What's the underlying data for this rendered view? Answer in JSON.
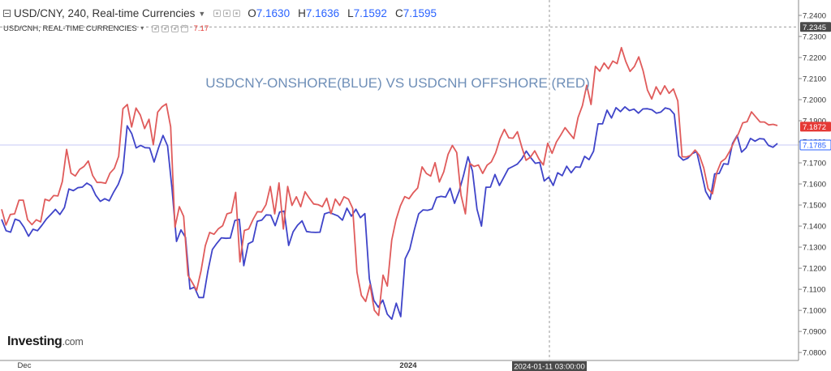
{
  "header": {
    "symbol_line": "USD/CNY, 240, Real-time Currencies",
    "ohlc": [
      {
        "key": "O",
        "value": "7.1630"
      },
      {
        "key": "H",
        "value": "7.1636"
      },
      {
        "key": "L",
        "value": "7.1592"
      },
      {
        "key": "C",
        "value": "7.1595"
      }
    ],
    "second_line": "USD/CNH, REAL-TIME CURRENCIES",
    "second_value": "7.17"
  },
  "watermark": {
    "brand": "Investing",
    "suffix": ".com"
  },
  "colors": {
    "blue_series": "#3f44c9",
    "red_series": "#e05b5b",
    "ohlc_value": "#2962ff",
    "title": "#6f8fb8",
    "crosshair": "#999999",
    "ref_line": "#c7c9f5"
  },
  "chart_data": {
    "type": "line",
    "title": "USDCNY-ONSHORE(BLUE) VS USDCNH OFFSHORE (RED)",
    "x_ticks": [
      "Dec",
      "2024"
    ],
    "crosshair_time_label": "2024-01-11 03:00:00",
    "y_ticks": [
      "7.2400",
      "7.2300",
      "7.2200",
      "7.2100",
      "7.2000",
      "7.1900",
      "7.1800",
      "7.1700",
      "7.1600",
      "7.1500",
      "7.1400",
      "7.1300",
      "7.1200",
      "7.1100",
      "7.1000",
      "7.0900",
      "7.0800"
    ],
    "ylim": [
      7.0794,
      7.2428
    ],
    "price_labels": [
      {
        "text": "7.2345",
        "value": 7.2345,
        "style": "dark"
      },
      {
        "text": "7.1872",
        "value": 7.1872,
        "style": "red"
      },
      {
        "text": "7.1785",
        "value": 7.1785,
        "style": "blue"
      }
    ],
    "ref_line_value": 7.1785,
    "crosshair_value": 7.2345,
    "grid": false,
    "legend": "none",
    "series": [
      {
        "color": "#3f44c9",
        "values": [
          7.1432,
          7.1378,
          7.1371,
          7.1433,
          7.1425,
          7.1394,
          7.1352,
          7.1385,
          7.1378,
          7.1404,
          7.1434,
          7.1456,
          7.1479,
          7.1455,
          7.1488,
          7.1576,
          7.1568,
          7.1582,
          7.1585,
          7.1604,
          7.1591,
          7.1546,
          7.1517,
          7.153,
          7.152,
          7.1562,
          7.1598,
          7.1655,
          7.1876,
          7.1839,
          7.1771,
          7.1783,
          7.1772,
          7.1771,
          7.1704,
          7.1772,
          7.183,
          7.178,
          7.1576,
          7.1327,
          7.1382,
          7.1346,
          7.1101,
          7.111,
          7.1061,
          7.1061,
          7.1187,
          7.1289,
          7.1318,
          7.1344,
          7.1342,
          7.1343,
          7.1426,
          7.1432,
          7.1212,
          7.1316,
          7.1327,
          7.1423,
          7.1428,
          7.1453,
          7.1452,
          7.1402,
          7.1467,
          7.1471,
          7.1308,
          7.1373,
          7.1404,
          7.1425,
          7.1374,
          7.1371,
          7.137,
          7.1371,
          7.1458,
          7.1465,
          7.1457,
          7.1448,
          7.1428,
          7.1485,
          7.1447,
          7.148,
          7.144,
          7.1459,
          7.115,
          7.1047,
          7.1015,
          7.1049,
          7.0982,
          7.0958,
          7.1034,
          7.097,
          7.1245,
          7.129,
          7.138,
          7.1458,
          7.1477,
          7.1475,
          7.1481,
          7.1536,
          7.1541,
          7.1537,
          7.158,
          7.1508,
          7.1565,
          7.1641,
          7.1729,
          7.1661,
          7.148,
          7.14,
          7.1584,
          7.1585,
          7.1645,
          7.1593,
          7.1632,
          7.1672,
          7.1683,
          7.1694,
          7.1719,
          7.1756,
          7.1724,
          7.1698,
          7.1702,
          7.1614,
          7.1632,
          7.1593,
          7.1653,
          7.1639,
          7.1684,
          7.1653,
          7.1681,
          7.1679,
          7.1731,
          7.1715,
          7.1755,
          7.1885,
          7.1885,
          7.195,
          7.1913,
          7.1962,
          7.1943,
          7.1966,
          7.1948,
          7.1955,
          7.1936,
          7.1956,
          7.1957,
          7.1952,
          7.1936,
          7.1941,
          7.1961,
          7.1955,
          7.1931,
          7.1733,
          7.1713,
          7.1722,
          7.1744,
          7.1753,
          7.166,
          7.1564,
          7.1527,
          7.1648,
          7.165,
          7.1696,
          7.1693,
          7.1792,
          7.183,
          7.1751,
          7.1771,
          7.1816,
          7.1803,
          7.1815,
          7.1813,
          7.1783,
          7.1774,
          7.1792
        ]
      },
      {
        "color": "#e05b5b",
        "values": [
          7.148,
          7.1405,
          7.1455,
          7.1458,
          7.1523,
          7.1523,
          7.143,
          7.1407,
          7.143,
          7.142,
          7.1527,
          7.152,
          7.1545,
          7.1543,
          7.1611,
          7.1764,
          7.1651,
          7.1638,
          7.1669,
          7.1683,
          7.1709,
          7.164,
          7.1607,
          7.1607,
          7.1603,
          7.1651,
          7.1674,
          7.1731,
          7.1957,
          7.1977,
          7.187,
          7.196,
          7.1927,
          7.1863,
          7.1907,
          7.1786,
          7.1941,
          7.1966,
          7.198,
          7.1871,
          7.1394,
          7.1492,
          7.1446,
          7.1166,
          7.1131,
          7.1095,
          7.1187,
          7.1307,
          7.137,
          7.1361,
          7.1387,
          7.1402,
          7.1458,
          7.1464,
          7.156,
          7.123,
          7.1379,
          7.1386,
          7.1431,
          7.1468,
          7.1467,
          7.1502,
          7.1588,
          7.1458,
          7.1605,
          7.1386,
          7.1588,
          7.1498,
          7.1539,
          7.1492,
          7.1563,
          7.1532,
          7.1505,
          7.1502,
          7.1492,
          7.1532,
          7.1459,
          7.1528,
          7.1498,
          7.1539,
          7.1528,
          7.1484,
          7.1181,
          7.1071,
          7.1042,
          7.1121,
          7.1,
          7.0976,
          7.1167,
          7.1115,
          7.1333,
          7.143,
          7.1496,
          7.154,
          7.153,
          7.1559,
          7.1581,
          7.1681,
          7.165,
          7.1637,
          7.1701,
          7.1609,
          7.1657,
          7.174,
          7.1783,
          7.1749,
          7.1547,
          7.1458,
          7.1698,
          7.1683,
          7.169,
          7.165,
          7.1689,
          7.1705,
          7.1748,
          7.1815,
          7.1859,
          7.1819,
          7.1817,
          7.1848,
          7.1776,
          7.1712,
          7.1727,
          7.1757,
          7.1717,
          7.169,
          7.1793,
          7.1745,
          7.1799,
          7.1832,
          7.1867,
          7.1841,
          7.1815,
          7.1915,
          7.1972,
          7.2068,
          7.1977,
          7.2158,
          7.2135,
          7.2174,
          7.2146,
          7.2183,
          7.2171,
          7.2247,
          7.2181,
          7.2134,
          7.2158,
          7.2203,
          7.2138,
          7.2046,
          7.2003,
          7.2061,
          7.2025,
          7.2066,
          7.203,
          7.2051,
          7.1994,
          7.1729,
          7.1728,
          7.1736,
          7.1761,
          7.1735,
          7.1676,
          7.1578,
          7.1553,
          7.1653,
          7.1705,
          7.172,
          7.1756,
          7.1801,
          7.1838,
          7.189,
          7.1895,
          7.1942,
          7.1918,
          7.1894,
          7.1894,
          7.188,
          7.1883,
          7.1877
        ]
      }
    ]
  }
}
